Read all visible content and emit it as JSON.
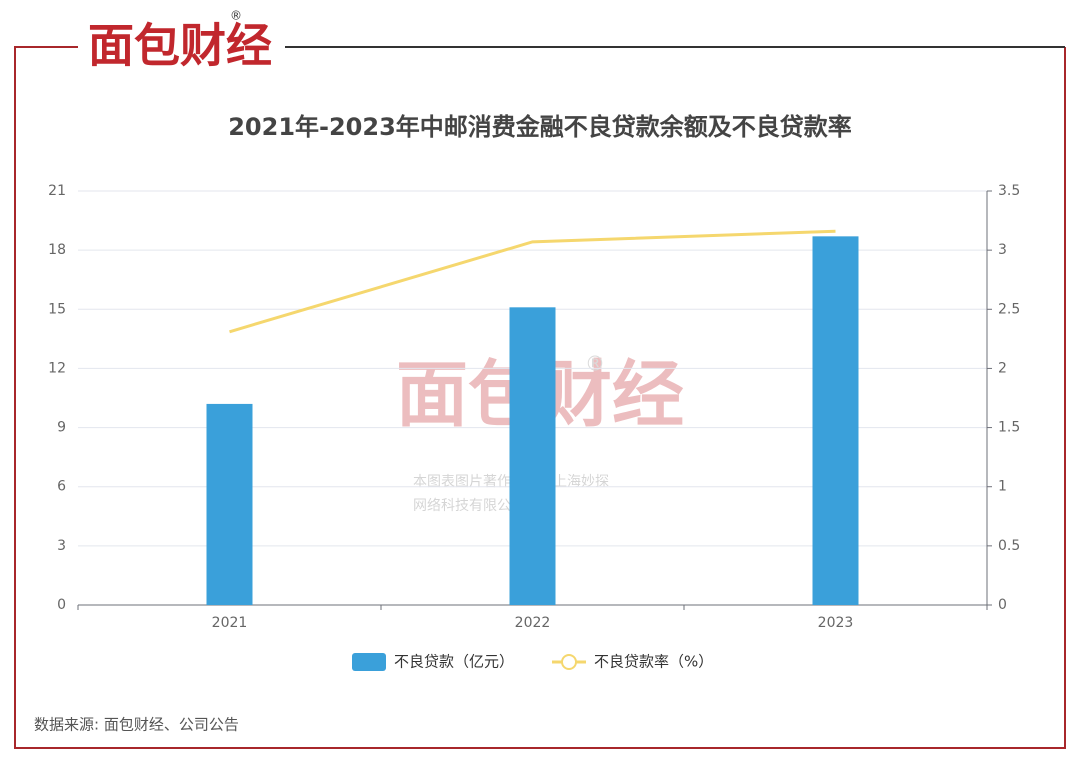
{
  "logo": {
    "text": "面包财经",
    "mark": "®"
  },
  "watermark": {
    "text": "面包财经",
    "mark": "®",
    "lines": [
      "本图表图片著作权属于上海妙探",
      "网络科技有限公司"
    ]
  },
  "source": "数据来源: 面包财经、公司公告",
  "chart_data": {
    "type": "bar",
    "title": "2021年-2023年中邮消费金融不良贷款余额及不良贷款率",
    "categories": [
      "2021",
      "2022",
      "2023"
    ],
    "series": [
      {
        "name": "不良贷款（亿元）",
        "type": "bar",
        "color": "#3aa0da",
        "values": [
          10.2,
          15.1,
          18.7
        ]
      },
      {
        "name": "不良贷款率（%）",
        "type": "line",
        "axis": "y2",
        "color": "#f5d76e",
        "values": [
          2.31,
          3.07,
          3.16
        ]
      }
    ],
    "ylim": [
      0,
      21
    ],
    "yticks": [
      0,
      3,
      6,
      9,
      12,
      15,
      18,
      21
    ],
    "y2lim": [
      0,
      3.5
    ],
    "y2ticks": [
      0,
      0.5,
      1,
      1.5,
      2,
      2.5,
      3,
      3.5
    ],
    "grid": true,
    "legend": "bottom"
  }
}
